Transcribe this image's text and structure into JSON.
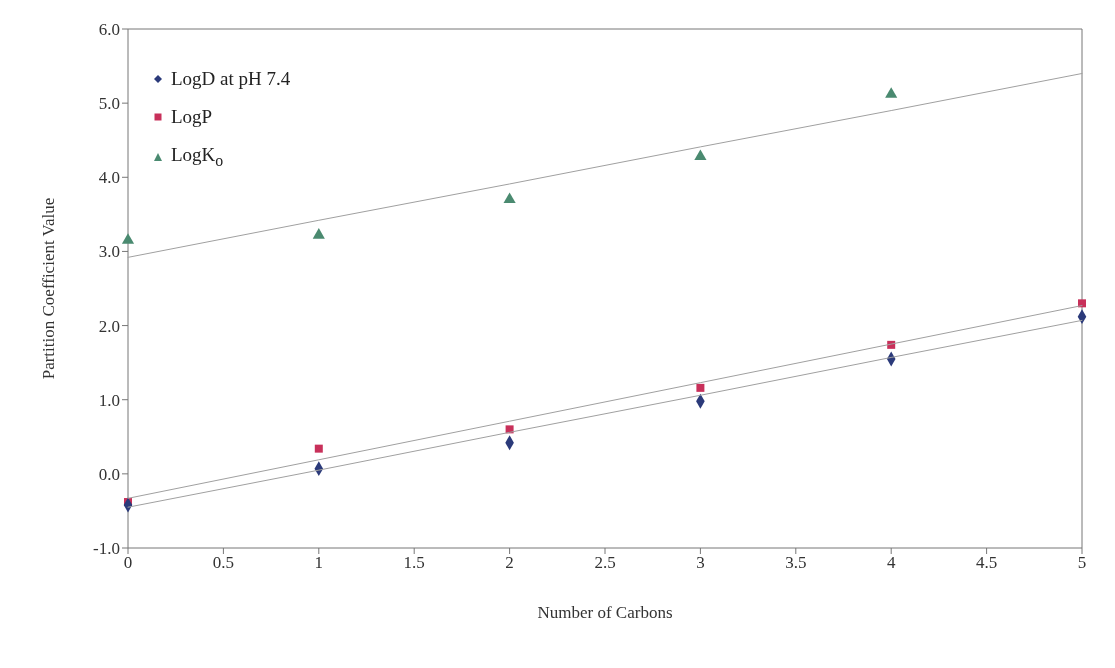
{
  "chart_data": {
    "type": "scatter",
    "xlabel": "Number of Carbons",
    "ylabel": "Partition Coefficient Value",
    "xlim": [
      0,
      5
    ],
    "xticks": [
      0,
      0.5,
      1,
      1.5,
      2,
      2.5,
      3,
      3.5,
      4,
      4.5,
      5
    ],
    "ylim": [
      -1,
      6
    ],
    "yticks": [
      {
        "value": -1,
        "label": "-1.0"
      },
      {
        "value": 0,
        "label": "0.0"
      },
      {
        "value": 1,
        "label": "1.0"
      },
      {
        "value": 2,
        "label": "2.0"
      },
      {
        "value": 3,
        "label": "3.0"
      },
      {
        "value": 4,
        "label": "4.0"
      },
      {
        "value": 5,
        "label": "5.0"
      },
      {
        "value": 6,
        "label": "6.0"
      }
    ],
    "grid": false,
    "legend": "top left",
    "x": [
      0,
      1,
      2,
      3,
      4,
      5
    ],
    "series": [
      {
        "name": "LogD at pH 7.4",
        "color": "#2b3a7a",
        "marker": "diamond",
        "values": [
          -0.42,
          0.07,
          0.42,
          0.98,
          1.55,
          2.12
        ]
      },
      {
        "name": "LogP",
        "color": "#c8305a",
        "marker": "square",
        "values": [
          -0.38,
          0.34,
          0.6,
          1.16,
          1.74,
          2.3
        ]
      },
      {
        "name": "LogK$_{o}$",
        "color": "#4a8a70",
        "marker": "triangle",
        "values": [
          3.15,
          3.22,
          3.7,
          4.28,
          5.12,
          null
        ]
      },
      {
        "type": "line",
        "color": "#a0a0a0",
        "values": [
          -0.45,
          0.05,
          0.56,
          1.06,
          1.57,
          2.07
        ]
      },
      {
        "type": "line",
        "color": "#a0a0a0",
        "values": [
          -0.33,
          0.19,
          0.71,
          1.23,
          1.75,
          2.27
        ]
      },
      {
        "type": "line",
        "color": "#a0a0a0",
        "values": [
          2.92,
          3.42,
          3.91,
          4.41,
          4.9,
          5.4
        ]
      }
    ]
  }
}
